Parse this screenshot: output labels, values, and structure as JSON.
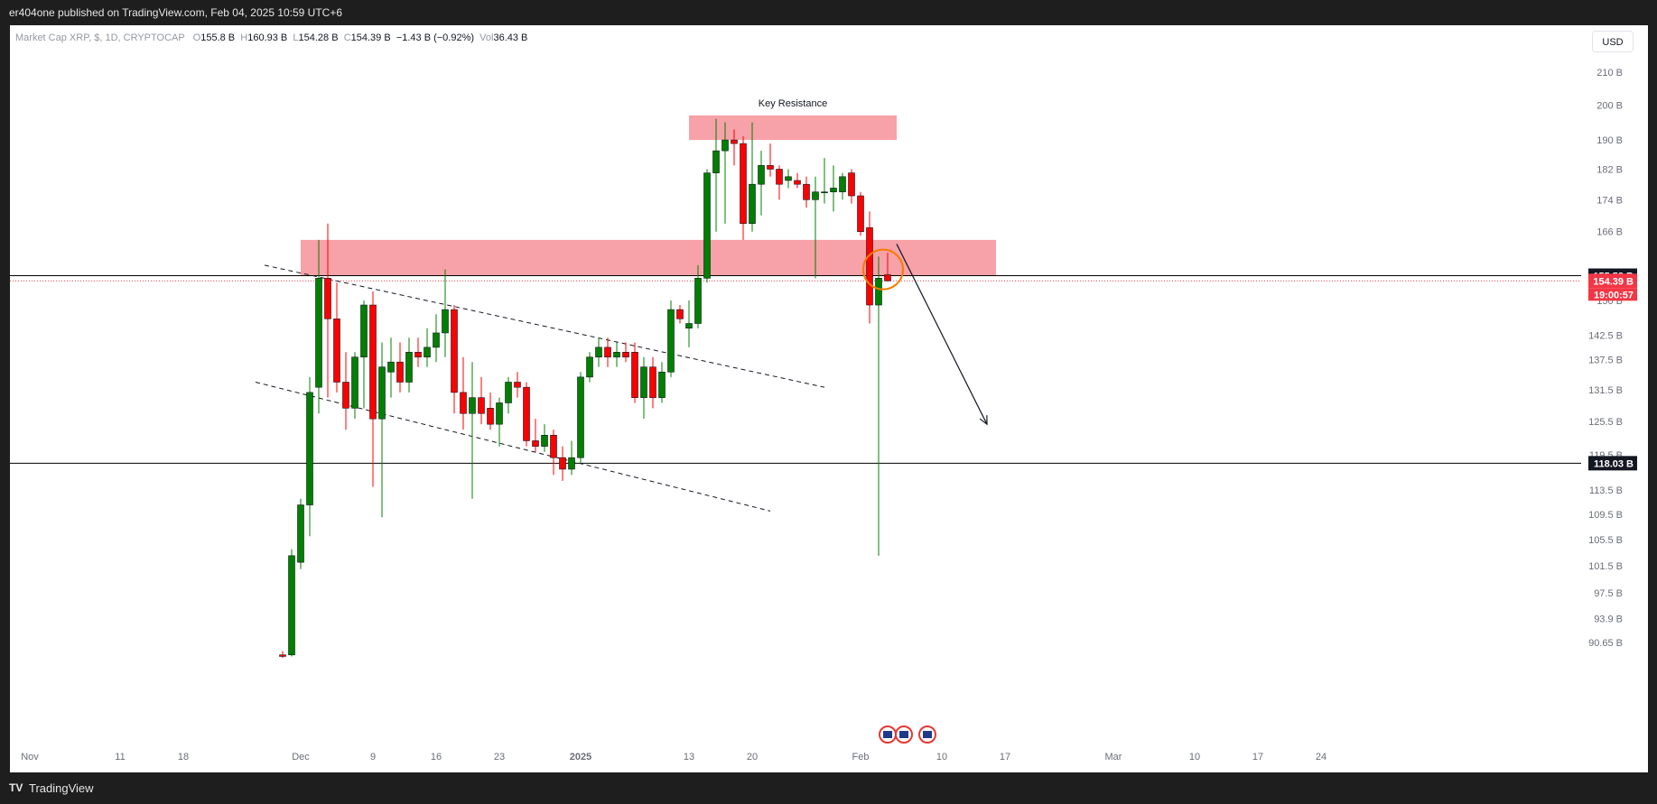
{
  "header": {
    "published": "er404one published on TradingView.com, Feb 04, 2025 10:59 UTC+6"
  },
  "legend": {
    "symbol": "Market Cap XRP, $, 1D, CRYPTOCAP",
    "o_label": "O",
    "o_value": "155.8 B",
    "h_label": "H",
    "h_value": "160.93 B",
    "l_label": "L",
    "l_value": "154.28 B",
    "c_label": "C",
    "c_value": "154.39 B",
    "change": "−1.43 B (−0.92%)",
    "vol_label": "Vol",
    "vol_value": "36.43 B"
  },
  "currency_button": "USD",
  "footer": {
    "brand": "TradingView",
    "logo": "TV"
  },
  "colors": {
    "up": "#008000",
    "down": "#ff0000",
    "zone": "#f7a1a8",
    "line": "#000000",
    "price_tag": "#f23645",
    "bg": "#ffffff"
  },
  "chart_data": {
    "type": "candlestick",
    "y_scale": "log",
    "ylim": [
      88.5,
      222
    ],
    "y_ticks": [
      "90.65 B",
      "93.9 B",
      "97.5 B",
      "101.5 B",
      "105.5 B",
      "109.5 B",
      "113.5 B",
      "119.5 B",
      "125.5 B",
      "131.5 B",
      "137.5 B",
      "142.5 B",
      "150 B",
      "166 B",
      "174 B",
      "182 B",
      "190 B",
      "200 B",
      "210 B"
    ],
    "y_tick_values": [
      90.65,
      93.9,
      97.5,
      101.5,
      105.5,
      109.5,
      113.5,
      119.5,
      125.5,
      131.5,
      137.5,
      142.5,
      150,
      166,
      174,
      182,
      190,
      200,
      210
    ],
    "x_ticks": [
      {
        "label": "Nov",
        "day": 0
      },
      {
        "label": "11",
        "day": 10
      },
      {
        "label": "18",
        "day": 17
      },
      {
        "label": "Dec",
        "day": 30
      },
      {
        "label": "9",
        "day": 38
      },
      {
        "label": "16",
        "day": 45
      },
      {
        "label": "23",
        "day": 52
      },
      {
        "label": "2025",
        "day": 61
      },
      {
        "label": "13",
        "day": 73
      },
      {
        "label": "20",
        "day": 80
      },
      {
        "label": "Feb",
        "day": 92
      },
      {
        "label": "10",
        "day": 101
      },
      {
        "label": "17",
        "day": 108
      },
      {
        "label": "Mar",
        "day": 120
      },
      {
        "label": "10",
        "day": 129
      },
      {
        "label": "17",
        "day": 136
      },
      {
        "label": "24",
        "day": 143
      }
    ],
    "candles": [
      {
        "date": "Nov 29",
        "o": 89.0,
        "h": 89.5,
        "l": 88.6,
        "c": 88.8
      },
      {
        "date": "Nov 30",
        "o": 89.0,
        "h": 104,
        "l": 88.8,
        "c": 103
      },
      {
        "date": "Dec 01",
        "o": 102,
        "h": 112,
        "l": 101,
        "c": 111
      },
      {
        "date": "Dec 02",
        "o": 111,
        "h": 134,
        "l": 106,
        "c": 131
      },
      {
        "date": "Dec 03",
        "o": 132,
        "h": 164,
        "l": 127,
        "c": 155
      },
      {
        "date": "Dec 04",
        "o": 155,
        "h": 168,
        "l": 130,
        "c": 146
      },
      {
        "date": "Dec 05",
        "o": 146,
        "h": 154,
        "l": 131,
        "c": 133
      },
      {
        "date": "Dec 06",
        "o": 133,
        "h": 139,
        "l": 124,
        "c": 128
      },
      {
        "date": "Dec 07",
        "o": 128,
        "h": 139,
        "l": 126,
        "c": 138
      },
      {
        "date": "Dec 08",
        "o": 138,
        "h": 150,
        "l": 128,
        "c": 149
      },
      {
        "date": "Dec 09",
        "o": 149,
        "h": 152,
        "l": 114,
        "c": 126
      },
      {
        "date": "Dec 10",
        "o": 126,
        "h": 141,
        "l": 109,
        "c": 136
      },
      {
        "date": "Dec 11",
        "o": 135,
        "h": 142,
        "l": 130,
        "c": 137
      },
      {
        "date": "Dec 12",
        "o": 137,
        "h": 141,
        "l": 131,
        "c": 133
      },
      {
        "date": "Dec 13",
        "o": 133,
        "h": 142,
        "l": 131,
        "c": 139
      },
      {
        "date": "Dec 14",
        "o": 139,
        "h": 142,
        "l": 136,
        "c": 138
      },
      {
        "date": "Dec 15",
        "o": 138,
        "h": 144,
        "l": 136,
        "c": 140
      },
      {
        "date": "Dec 16",
        "o": 140,
        "h": 147,
        "l": 137,
        "c": 143
      },
      {
        "date": "Dec 17",
        "o": 143,
        "h": 157,
        "l": 138,
        "c": 148
      },
      {
        "date": "Dec 18",
        "o": 148,
        "h": 149,
        "l": 127,
        "c": 131
      },
      {
        "date": "Dec 19",
        "o": 131,
        "h": 138,
        "l": 124,
        "c": 127
      },
      {
        "date": "Dec 20",
        "o": 127,
        "h": 137,
        "l": 112,
        "c": 130
      },
      {
        "date": "Dec 21",
        "o": 130,
        "h": 134,
        "l": 125,
        "c": 127
      },
      {
        "date": "Dec 22",
        "o": 128,
        "h": 131,
        "l": 124,
        "c": 125
      },
      {
        "date": "Dec 23",
        "o": 125,
        "h": 130,
        "l": 121,
        "c": 129
      },
      {
        "date": "Dec 24",
        "o": 129,
        "h": 134,
        "l": 127,
        "c": 133
      },
      {
        "date": "Dec 25",
        "o": 133,
        "h": 135,
        "l": 130,
        "c": 132
      },
      {
        "date": "Dec 26",
        "o": 132,
        "h": 133,
        "l": 121,
        "c": 122
      },
      {
        "date": "Dec 27",
        "o": 122,
        "h": 126,
        "l": 120,
        "c": 121
      },
      {
        "date": "Dec 28",
        "o": 121,
        "h": 125,
        "l": 120,
        "c": 123
      },
      {
        "date": "Dec 29",
        "o": 123,
        "h": 124,
        "l": 116,
        "c": 119
      },
      {
        "date": "Dec 30",
        "o": 119,
        "h": 121,
        "l": 115,
        "c": 117
      },
      {
        "date": "Dec 31",
        "o": 117,
        "h": 122,
        "l": 116,
        "c": 119
      },
      {
        "date": "Jan 01",
        "o": 119,
        "h": 135,
        "l": 118,
        "c": 134
      },
      {
        "date": "Jan 02",
        "o": 134,
        "h": 139,
        "l": 133,
        "c": 138
      },
      {
        "date": "Jan 03",
        "o": 138,
        "h": 142,
        "l": 136,
        "c": 140
      },
      {
        "date": "Jan 04",
        "o": 140,
        "h": 142,
        "l": 136,
        "c": 138
      },
      {
        "date": "Jan 05",
        "o": 138,
        "h": 141,
        "l": 136,
        "c": 139
      },
      {
        "date": "Jan 06",
        "o": 139,
        "h": 141,
        "l": 137,
        "c": 138
      },
      {
        "date": "Jan 07",
        "o": 139,
        "h": 141,
        "l": 129,
        "c": 130
      },
      {
        "date": "Jan 08",
        "o": 130,
        "h": 138,
        "l": 126,
        "c": 136
      },
      {
        "date": "Jan 09",
        "o": 136,
        "h": 138,
        "l": 128,
        "c": 130
      },
      {
        "date": "Jan 10",
        "o": 130,
        "h": 137,
        "l": 129,
        "c": 135
      },
      {
        "date": "Jan 11",
        "o": 135,
        "h": 150,
        "l": 134,
        "c": 148
      },
      {
        "date": "Jan 12",
        "o": 148,
        "h": 149,
        "l": 145,
        "c": 146
      },
      {
        "date": "Jan 13",
        "o": 144,
        "h": 150,
        "l": 140,
        "c": 145
      },
      {
        "date": "Jan 14",
        "o": 145,
        "h": 158,
        "l": 144,
        "c": 155
      },
      {
        "date": "Jan 15",
        "o": 155,
        "h": 182,
        "l": 154,
        "c": 181
      },
      {
        "date": "Jan 16",
        "o": 181,
        "h": 196,
        "l": 166,
        "c": 187
      },
      {
        "date": "Jan 17",
        "o": 187,
        "h": 195,
        "l": 168,
        "c": 190
      },
      {
        "date": "Jan 18",
        "o": 190,
        "h": 193,
        "l": 183,
        "c": 189
      },
      {
        "date": "Jan 19",
        "o": 189,
        "h": 191,
        "l": 164,
        "c": 168
      },
      {
        "date": "Jan 20",
        "o": 168,
        "h": 195,
        "l": 166,
        "c": 178
      },
      {
        "date": "Jan 21",
        "o": 178,
        "h": 187,
        "l": 170,
        "c": 183
      },
      {
        "date": "Jan 22",
        "o": 183,
        "h": 189,
        "l": 180,
        "c": 182
      },
      {
        "date": "Jan 23",
        "o": 182,
        "h": 183,
        "l": 174,
        "c": 178
      },
      {
        "date": "Jan 24",
        "o": 179,
        "h": 182,
        "l": 177,
        "c": 180
      },
      {
        "date": "Jan 25",
        "o": 179,
        "h": 181,
        "l": 177,
        "c": 178
      },
      {
        "date": "Jan 26",
        "o": 178,
        "h": 180,
        "l": 172,
        "c": 174
      },
      {
        "date": "Jan 27",
        "o": 174,
        "h": 180,
        "l": 155,
        "c": 176
      },
      {
        "date": "Jan 28",
        "o": 176,
        "h": 185,
        "l": 173,
        "c": 176
      },
      {
        "date": "Jan 29",
        "o": 176,
        "h": 183,
        "l": 171,
        "c": 177
      },
      {
        "date": "Jan 30",
        "o": 176,
        "h": 181,
        "l": 174,
        "c": 180
      },
      {
        "date": "Jan 31",
        "o": 181,
        "h": 182,
        "l": 173,
        "c": 175
      },
      {
        "date": "Feb 01",
        "o": 175,
        "h": 176,
        "l": 165,
        "c": 166
      },
      {
        "date": "Feb 02",
        "o": 167,
        "h": 171,
        "l": 145,
        "c": 149
      },
      {
        "date": "Feb 03",
        "o": 149,
        "h": 160,
        "l": 103,
        "c": 155
      },
      {
        "date": "Feb 04",
        "o": 155.8,
        "h": 160.93,
        "l": 154.28,
        "c": 154.39
      }
    ],
    "zones": [
      {
        "label": "Key Resistance",
        "from_day": 73,
        "to_day": 96,
        "y_low": 190,
        "y_high": 197
      },
      {
        "label": "",
        "from_day": 30,
        "to_day": 107,
        "y_low": 155.58,
        "y_high": 164
      }
    ],
    "trendlines": [
      {
        "style": "dashed",
        "from_day": 26,
        "from_y": 158,
        "to_day": 88,
        "to_y": 132
      },
      {
        "style": "dashed",
        "from_day": 25,
        "from_y": 133,
        "to_day": 82,
        "to_y": 110
      }
    ],
    "hlines": [
      {
        "value": 155.58,
        "label": "155.58 B"
      },
      {
        "value": 118.03,
        "label": "118.03 B"
      }
    ],
    "current_price": {
      "value": 154.39,
      "label": "154.39 B",
      "countdown": "19:00:57"
    },
    "projection": {
      "from_day": 96,
      "from_y": 163,
      "to_day": 106,
      "to_y": 125
    }
  }
}
